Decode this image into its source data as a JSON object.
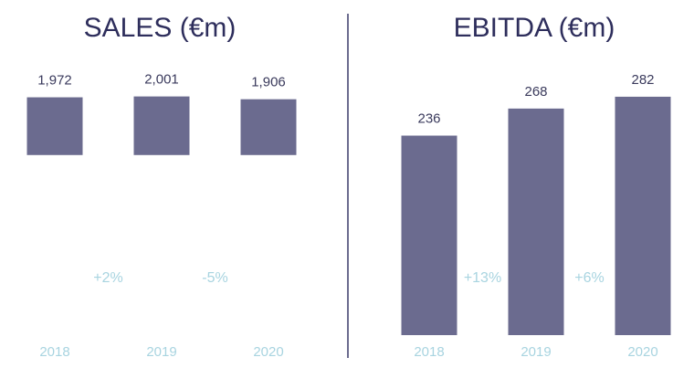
{
  "chart_data": [
    {
      "type": "bar",
      "title": "SALES (€m)",
      "categories": [
        "2018",
        "2019",
        "2020"
      ],
      "values": [
        1972,
        2001,
        1906
      ],
      "value_labels": [
        "1,972",
        "2,001",
        "1,906"
      ],
      "color": "#6b6b8f",
      "ylim": [
        -6150,
        2800
      ],
      "annotations": [
        "+2%",
        "-5%"
      ]
    },
    {
      "type": "bar",
      "title": "EBITDA (€m)",
      "categories": [
        "2018",
        "2019",
        "2020"
      ],
      "values": [
        236,
        268,
        282
      ],
      "color": "#6b6b8f",
      "ylim": [
        0,
        310
      ],
      "annotations": [
        "+13%",
        "+6%"
      ]
    }
  ]
}
